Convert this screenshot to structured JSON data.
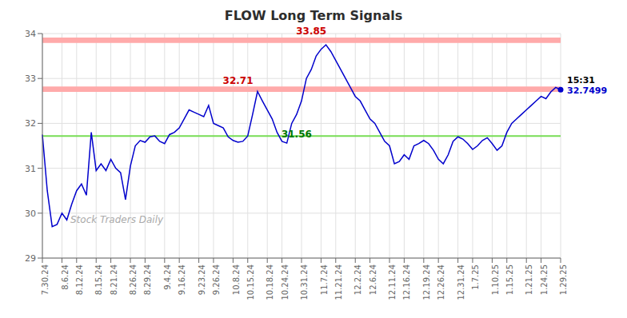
{
  "chart_data": {
    "type": "line",
    "title": "FLOW Long Term Signals",
    "title_color": "#2d2d2d",
    "color": "#0000cc",
    "grid": true,
    "ylim": [
      29,
      34
    ],
    "yticks": [
      29,
      30,
      31,
      32,
      33,
      34
    ],
    "categories": [
      "7.30.24",
      null,
      null,
      null,
      "8.6.24",
      null,
      null,
      "8.12.24",
      null,
      null,
      null,
      "8.15.24",
      null,
      null,
      "8.21.24",
      null,
      null,
      null,
      "8.26.24",
      null,
      null,
      "8.29.24",
      null,
      null,
      null,
      "9.4.24",
      null,
      null,
      "9.16.24",
      null,
      null,
      null,
      "9.23.24",
      null,
      null,
      "9.26.24",
      null,
      null,
      null,
      "10.8.24",
      null,
      null,
      "10.15.24",
      null,
      null,
      null,
      "10.18.24",
      null,
      null,
      "10.24.24",
      null,
      null,
      null,
      "10.31.24",
      null,
      null,
      null,
      "11.7.24",
      null,
      null,
      "11.21.24",
      null,
      null,
      null,
      "12.2.24",
      null,
      null,
      "12.6.24",
      null,
      null,
      null,
      "12.11.24",
      null,
      null,
      "12.16.24",
      null,
      null,
      null,
      "12.19.24",
      null,
      null,
      "12.26.24",
      null,
      null,
      null,
      "12.31.24",
      null,
      null,
      "1.7.25",
      null,
      null,
      null,
      "1.10.25",
      null,
      null,
      "1.15.25",
      null,
      null,
      null,
      "1.21.25",
      null,
      null,
      "1.24.25",
      null,
      null,
      null,
      "1.29.25"
    ],
    "values": [
      31.75,
      30.5,
      29.7,
      29.75,
      30.0,
      29.85,
      30.2,
      30.5,
      30.65,
      30.4,
      31.8,
      30.95,
      31.1,
      30.95,
      31.2,
      31.0,
      30.9,
      30.3,
      31.05,
      31.5,
      31.62,
      31.58,
      31.7,
      31.72,
      31.6,
      31.55,
      31.75,
      31.8,
      31.9,
      32.1,
      32.3,
      32.25,
      32.2,
      32.15,
      32.4,
      32.0,
      31.95,
      31.9,
      31.7,
      31.62,
      31.58,
      31.6,
      31.72,
      32.2,
      32.71,
      32.5,
      32.3,
      32.1,
      31.8,
      31.6,
      31.56,
      32.0,
      32.2,
      32.5,
      33.0,
      33.2,
      33.5,
      33.65,
      33.75,
      33.6,
      33.4,
      33.2,
      33.0,
      32.8,
      32.6,
      32.5,
      32.3,
      32.1,
      32.0,
      31.8,
      31.6,
      31.5,
      31.1,
      31.15,
      31.3,
      31.2,
      31.5,
      31.55,
      31.62,
      31.55,
      31.4,
      31.2,
      31.1,
      31.3,
      31.6,
      31.7,
      31.65,
      31.55,
      31.42,
      31.5,
      31.62,
      31.68,
      31.55,
      31.4,
      31.5,
      31.8,
      32.0,
      32.1,
      32.2,
      32.3,
      32.4,
      32.5,
      32.6,
      32.55,
      32.7,
      32.8,
      32.7499
    ],
    "bands": [
      {
        "y1": 33.79,
        "y2": 33.91,
        "color": "#ffaaaa"
      },
      {
        "y1": 32.7,
        "y2": 32.82,
        "color": "#ffaaaa"
      }
    ],
    "hlines": [
      {
        "y": 31.72,
        "color": "#77dd55"
      }
    ],
    "annotations": [
      {
        "text": "33.85",
        "x": 55,
        "y": 33.92,
        "color": "#cc0000"
      },
      {
        "text": "32.71",
        "x": 40,
        "y": 32.82,
        "color": "#cc0000"
      },
      {
        "text": "31.56",
        "x": 52,
        "y": 31.64,
        "color": "#007700"
      },
      {
        "text": "15:31",
        "x": 106,
        "y": 32.7499,
        "color": "#000000"
      },
      {
        "text": "32.7499",
        "x": 106,
        "y": 32.7499,
        "color": "#0000cc"
      }
    ],
    "watermark": "Stock Traders Daily"
  }
}
